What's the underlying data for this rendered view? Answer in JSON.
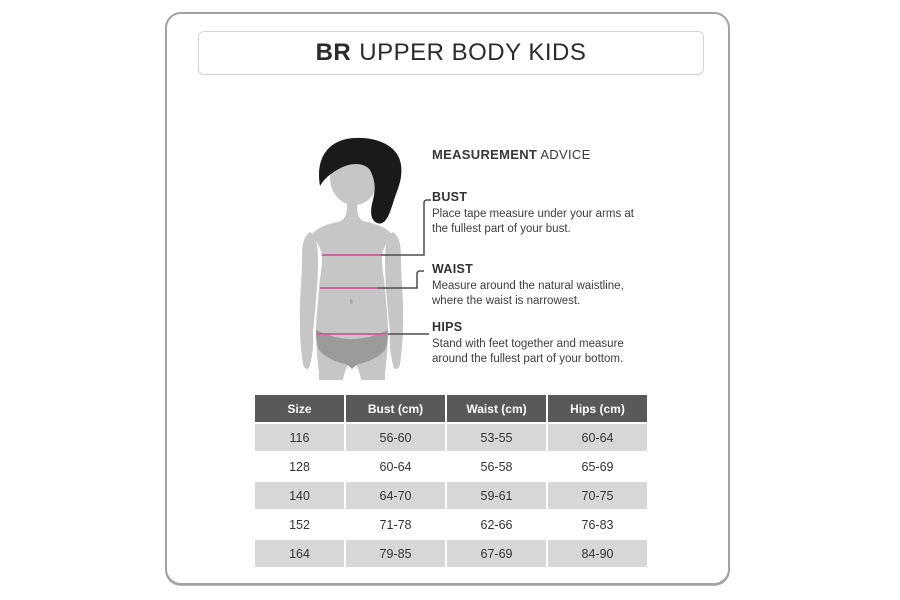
{
  "title": {
    "brand": "BR",
    "rest": "UPPER BODY KIDS"
  },
  "advice": {
    "heading_bold": "MEASUREMENT",
    "heading_rest": " ADVICE",
    "sections": [
      {
        "label": "BUST",
        "line1": "Place tape measure under your arms at",
        "line2": "the fullest part of your bust."
      },
      {
        "label": "WAIST",
        "line1": "Measure around the natural waistline,",
        "line2": "where the waist is narrowest."
      },
      {
        "label": "HIPS",
        "line1": "Stand with feet together and measure",
        "line2": "around the fullest part of your bottom."
      }
    ]
  },
  "size_table": {
    "columns": [
      "Size",
      "Bust (cm)",
      "Waist (cm)",
      "Hips (cm)"
    ],
    "rows": [
      [
        "116",
        "56-60",
        "53-55",
        "60-64"
      ],
      [
        "128",
        "60-64",
        "56-58",
        "65-69"
      ],
      [
        "140",
        "64-70",
        "59-61",
        "70-75"
      ],
      [
        "152",
        "71-78",
        "62-66",
        "76-83"
      ],
      [
        "164",
        "79-85",
        "67-69",
        "84-90"
      ]
    ]
  },
  "colors": {
    "measure_line": "#c9679a",
    "connector": "#4d4d4f",
    "body": "#c6c6c6",
    "hair": "#1a1a1a",
    "underwear": "#9b9b9b",
    "navel": "#a7a7a7",
    "table_header_bg": "#58595b",
    "table_alt_row_bg": "#d7d7d7",
    "card_border": "#a2a2a2"
  }
}
